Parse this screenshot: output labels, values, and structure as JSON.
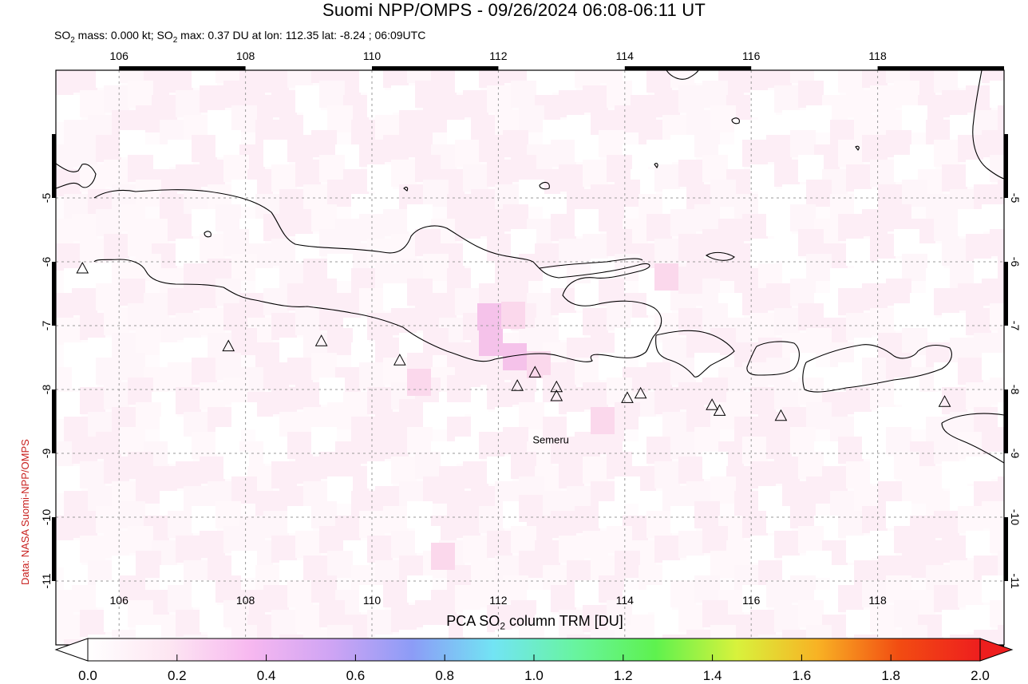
{
  "header": {
    "title": "Suomi NPP/OMPS - 09/26/2024 06:08-06:11 UT",
    "subtitle": {
      "part1": "SO",
      "sub1": "2",
      "part2": " mass: 0.000 kt; SO",
      "sub2": "2",
      "part3": " max: 0.37 DU at lon: 112.35 lat: -8.24 ; 06:09UTC"
    }
  },
  "credit": "Data: NASA Suomi-NPP/OMPS",
  "map": {
    "lon_range": [
      105.0,
      120.0
    ],
    "lat_range": [
      -12.0,
      -3.0
    ],
    "lon_ticks": [
      106,
      108,
      110,
      112,
      114,
      116,
      118
    ],
    "lon_tick_labels": [
      "106",
      "108",
      "110",
      "112",
      "114",
      "116",
      "118"
    ],
    "lat_ticks": [
      -5,
      -6,
      -7,
      -8,
      -9,
      -10,
      -11
    ],
    "lat_tick_labels": [
      "-5",
      "-6",
      "-7",
      "-8",
      "-9",
      "-10",
      "-11"
    ],
    "grid": true,
    "volcanoes": [
      {
        "lon": 105.42,
        "lat": -6.1
      },
      {
        "lon": 107.73,
        "lat": -7.32
      },
      {
        "lon": 109.2,
        "lat": -7.24
      },
      {
        "lon": 110.44,
        "lat": -7.54
      },
      {
        "lon": 112.3,
        "lat": -7.94
      },
      {
        "lon": 112.58,
        "lat": -7.73
      },
      {
        "lon": 112.92,
        "lat": -7.96
      },
      {
        "lon": 112.92,
        "lat": -8.1
      },
      {
        "lon": 114.04,
        "lat": -8.13
      },
      {
        "lon": 114.25,
        "lat": -8.06
      },
      {
        "lon": 115.38,
        "lat": -8.24
      },
      {
        "lon": 115.5,
        "lat": -8.33
      },
      {
        "lon": 116.47,
        "lat": -8.41
      },
      {
        "lon": 119.06,
        "lat": -8.19
      }
    ],
    "labeled_volcano": {
      "name": "Semeru",
      "lon": 112.83,
      "lat": -8.78
    },
    "colors": {
      "land_outline": "#000000",
      "grid": "#9a9a9a",
      "pixel_light": "#fdeef6",
      "pixel_mid": "#fbd8ec",
      "pixel_strong": "#f5c2ea"
    }
  },
  "colorbar": {
    "title_part1": "PCA SO",
    "title_sub": "2",
    "title_part2": " column TRM [DU]",
    "ticks": [
      "0.0",
      "0.2",
      "0.4",
      "0.6",
      "0.8",
      "1.0",
      "1.2",
      "1.4",
      "1.6",
      "1.8",
      "2.0"
    ],
    "min": 0.0,
    "max": 2.0,
    "stops": [
      "#ffffff",
      "#fde6f2",
      "#f7b8f0",
      "#cfa4f4",
      "#8c9cf6",
      "#72e4f4",
      "#68f4a0",
      "#5ef24e",
      "#d8f23c",
      "#f8b224",
      "#f24c12",
      "#ee1e1e"
    ]
  }
}
